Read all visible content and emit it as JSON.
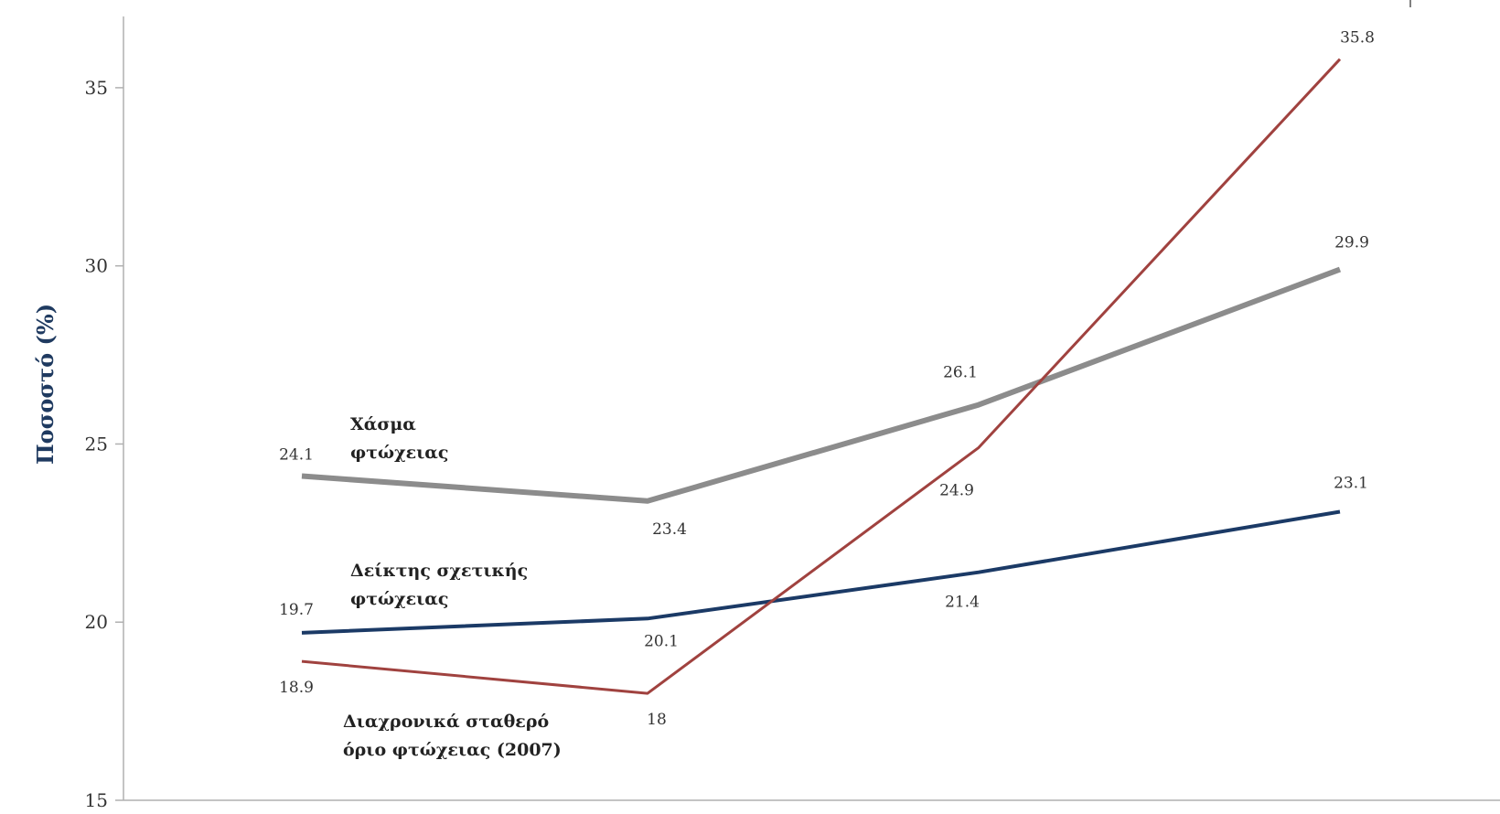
{
  "chart_data": {
    "type": "line",
    "ylabel": "Ποσοστό (%)",
    "xlabel": "",
    "ylim": [
      15,
      37
    ],
    "yticks": [
      15,
      20,
      25,
      30,
      35
    ],
    "x": [
      0,
      1,
      2,
      3
    ],
    "grid": false,
    "series": [
      {
        "name_lines": [
          "Χάσμα",
          "φτώχειας"
        ],
        "color": "#8c8c8c",
        "values": [
          24.1,
          23.4,
          26.1,
          29.9
        ],
        "labels": [
          "24.1",
          "23.4",
          "26.1",
          "29.9"
        ]
      },
      {
        "name_lines": [
          "Δείκτης σχετικής",
          "φτώχειας"
        ],
        "color": "#1b3a66",
        "values": [
          19.7,
          20.1,
          21.4,
          23.1
        ],
        "labels": [
          "19.7",
          "20.1",
          "21.4",
          "23.1"
        ]
      },
      {
        "name_lines": [
          "Διαχρονικά σταθερό",
          "όριο φτώχειας (2007)"
        ],
        "color": "#a0423f",
        "values": [
          18.9,
          18,
          24.9,
          35.8
        ],
        "labels": [
          "18.9",
          "18",
          "24.9",
          "35.8"
        ]
      }
    ]
  }
}
